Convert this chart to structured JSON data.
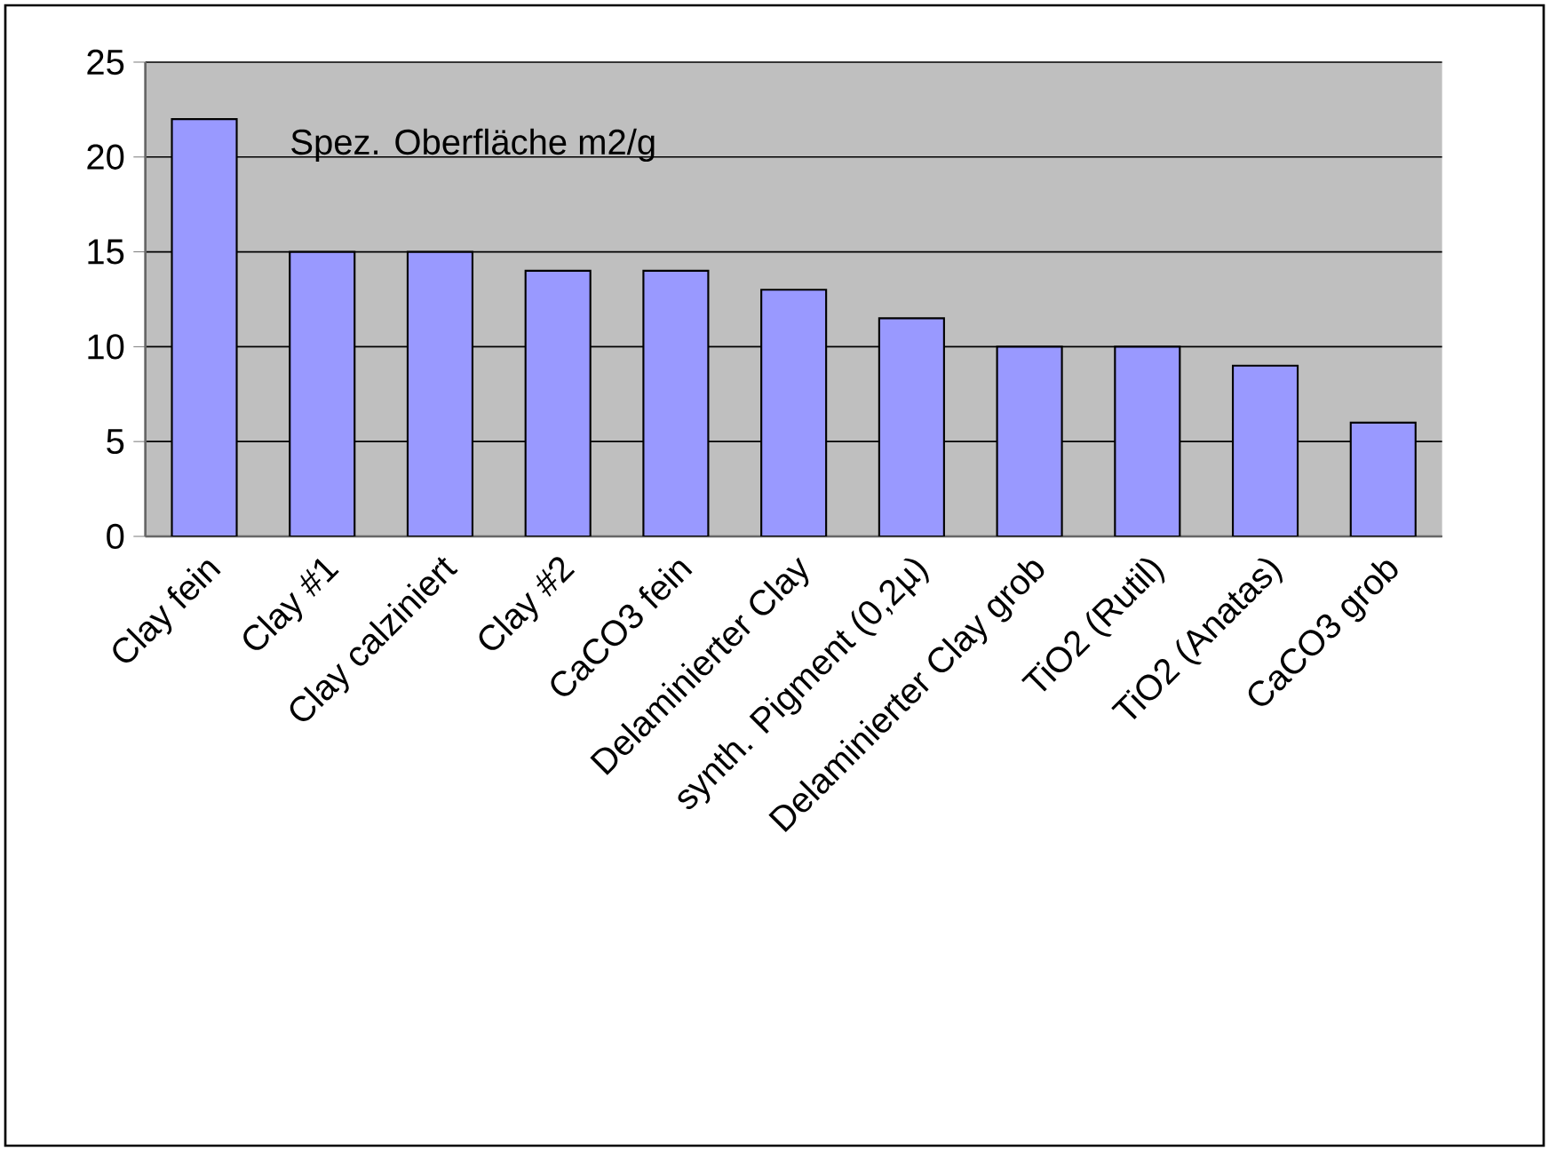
{
  "chart_data": {
    "type": "bar",
    "title": "Spez. Oberfläche m2/g",
    "categories": [
      "Clay fein",
      "Clay #1",
      "Clay calziniert",
      "Clay #2",
      "CaCO3 fein",
      "Delaminierter Clay",
      "synth. Pigment (0,2µ)",
      "Delaminierter Clay grob",
      "TiO2 (Rutil)",
      "TiO2 (Anatas)",
      "CaCO3 grob"
    ],
    "values": [
      22,
      15,
      15,
      14,
      14,
      13,
      11.5,
      10,
      10,
      9,
      6
    ],
    "color": "#9999ff",
    "ylim": [
      0,
      25
    ],
    "yticks": [
      0,
      5,
      10,
      15,
      20,
      25
    ],
    "grid": "y"
  }
}
